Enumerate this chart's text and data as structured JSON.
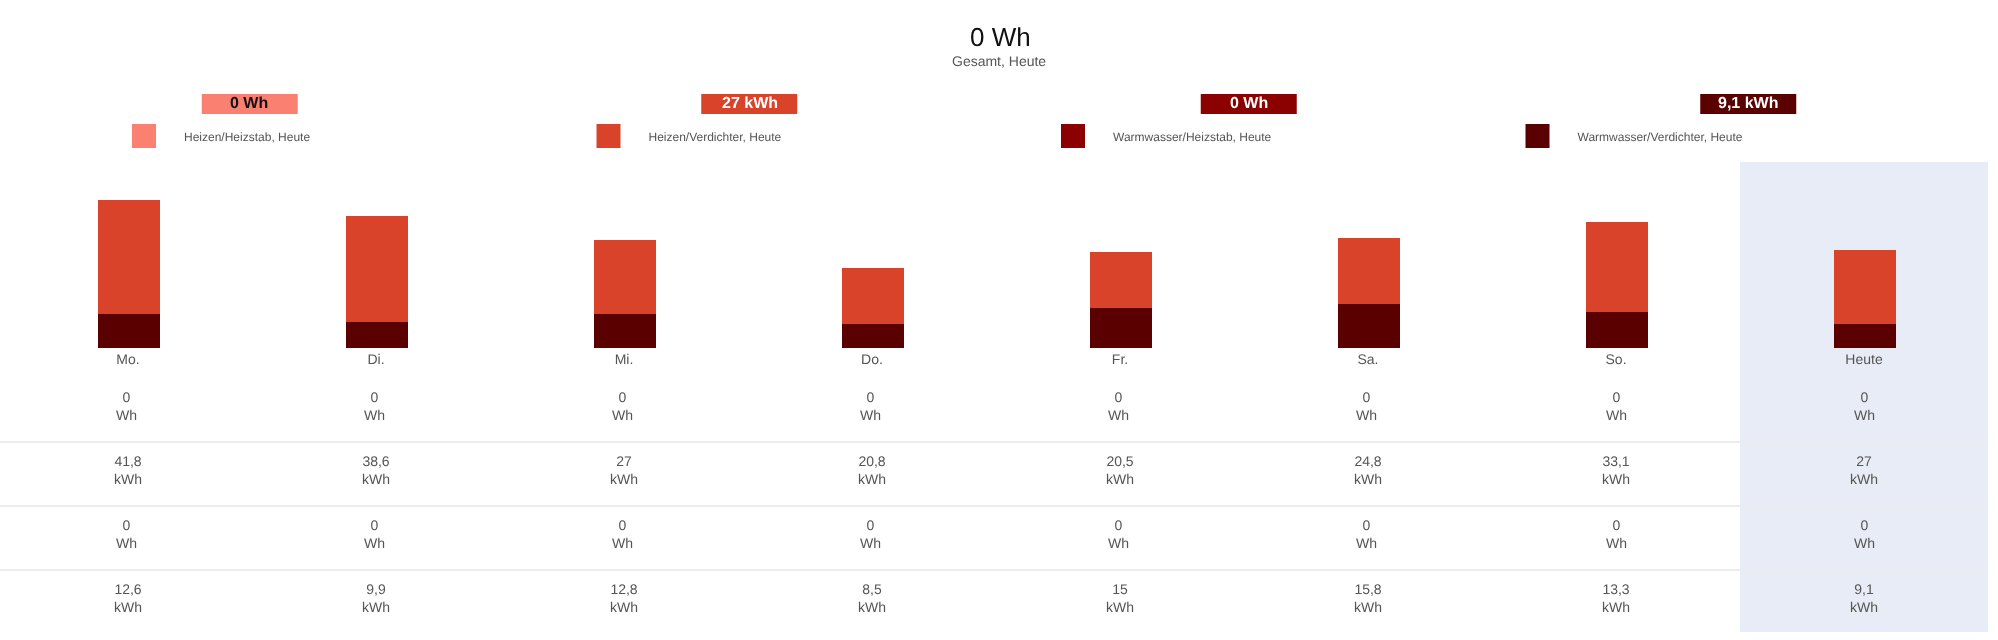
{
  "chart_data": {
    "type": "bar",
    "title": "0 Wh",
    "subtitle": "Gesamt, Heute",
    "categories": [
      "Mo.",
      "Di.",
      "Mi.",
      "Do.",
      "Fr.",
      "Sa.",
      "So.",
      "Heute"
    ],
    "stacked": true,
    "series": [
      {
        "name": "Warmwasser/Verdichter, Heute",
        "color": "#5a0000",
        "values": [
          12.6,
          9.9,
          12.8,
          8.5,
          15,
          15.8,
          13.3,
          9.1
        ],
        "value_labels": [
          "12,6 kWh",
          "9,9 kWh",
          "12,8 kWh",
          "8,5 kWh",
          "15 kWh",
          "15,8 kWh",
          "13,3 kWh",
          "9,1 kWh"
        ]
      },
      {
        "name": "Warmwasser/Heizstab, Heute",
        "color": "#8b0000",
        "values": [
          0,
          0,
          0,
          0,
          0,
          0,
          0,
          0
        ],
        "value_labels": [
          "0 Wh",
          "0 Wh",
          "0 Wh",
          "0 Wh",
          "0 Wh",
          "0 Wh",
          "0 Wh",
          "0 Wh"
        ]
      },
      {
        "name": "Heizen/Verdichter, Heute",
        "color": "#d9432a",
        "values": [
          41.8,
          38.6,
          27,
          20.8,
          20.5,
          24.8,
          33.1,
          27
        ],
        "value_labels": [
          "41,8 kWh",
          "38,6 kWh",
          "27 kWh",
          "20,8 kWh",
          "20,5 kWh",
          "24,8 kWh",
          "33,1 kWh",
          "27 kWh"
        ]
      },
      {
        "name": "Heizen/Heizstab, Heute",
        "color": "#fa8072",
        "values": [
          0,
          0,
          0,
          0,
          0,
          0,
          0,
          0
        ],
        "value_labels": [
          "0 Wh",
          "0 Wh",
          "0 Wh",
          "0 Wh",
          "0 Wh",
          "0 Wh",
          "0 Wh",
          "0 Wh"
        ]
      }
    ],
    "grid": false,
    "tick_labels": "x",
    "legend": "top",
    "bands": [
      {
        "axis": "x",
        "from": "Heute",
        "to": "Heute",
        "color": "#e8ecf6"
      }
    ]
  }
}
